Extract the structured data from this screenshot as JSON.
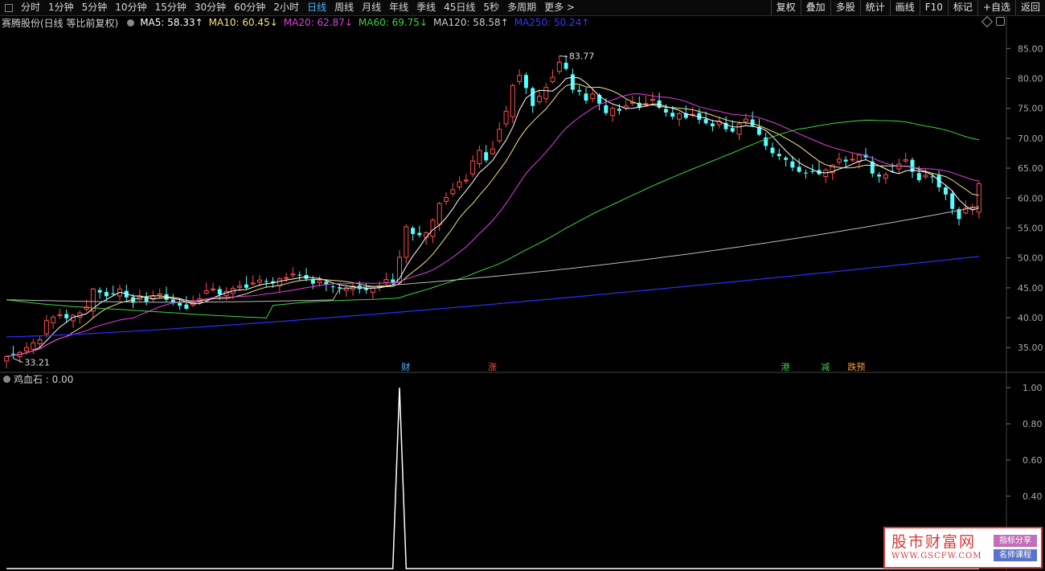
{
  "toolbar": {
    "periods": [
      {
        "label": "分时"
      },
      {
        "label": "1分钟"
      },
      {
        "label": "5分钟"
      },
      {
        "label": "10分钟"
      },
      {
        "label": "15分钟"
      },
      {
        "label": "30分钟"
      },
      {
        "label": "60分钟"
      },
      {
        "label": "2小时"
      },
      {
        "label": "日线",
        "active": true
      },
      {
        "label": "周线"
      },
      {
        "label": "月线"
      },
      {
        "label": "年线"
      },
      {
        "label": "季线"
      },
      {
        "label": "45日线"
      },
      {
        "label": "5秒"
      },
      {
        "label": "多周期"
      },
      {
        "label": "更多 >"
      }
    ],
    "right_buttons": [
      {
        "label": "复权"
      },
      {
        "label": "叠加"
      },
      {
        "label": "多股"
      },
      {
        "label": "统计"
      },
      {
        "label": "画线"
      },
      {
        "label": "F10"
      },
      {
        "label": "标记"
      },
      {
        "label": "+自选"
      },
      {
        "label": "返回"
      }
    ]
  },
  "legend": {
    "title": "赛腾股份(日线 等比前复权)",
    "items": [
      {
        "text": "MA5: 58.33↑",
        "color": "#ffffff"
      },
      {
        "text": "MA10: 60.45↓",
        "color": "#f5e28a"
      },
      {
        "text": "MA20: 62.87↓",
        "color": "#e040e0"
      },
      {
        "text": "MA60: 69.75↓",
        "color": "#3fd43f"
      },
      {
        "text": "MA120: 58.58↑",
        "color": "#cccccc"
      },
      {
        "text": "MA250: 50.24↑",
        "color": "#3636ff"
      }
    ]
  },
  "sub_legend": {
    "text": "鸡血石 : 0.00"
  },
  "watermark": {
    "title": "股市财富网",
    "url": "WWW.GSCFW.COM",
    "tag1": "指标分享",
    "tag2": "名师课程"
  },
  "colors": {
    "up": "#ff4b4b",
    "down": "#54ffff",
    "ma5": "#ffffff",
    "ma10": "#f5e28a",
    "ma20": "#e040e0",
    "ma60": "#3fd43f",
    "ma120": "#bbbbbb",
    "ma250": "#2e2eff"
  },
  "chart_data": [
    {
      "type": "candlestick",
      "title": "赛腾股份(日线 等比前复权)",
      "ylim": [
        31,
        88
      ],
      "y_ticks": [
        35,
        40,
        45,
        50,
        55,
        60,
        65,
        70,
        75,
        80,
        85
      ],
      "annotations": [
        {
          "text": "83.77",
          "value": 83.77
        },
        {
          "text": "33.21",
          "value": 33.21
        }
      ],
      "event_markers": [
        {
          "text": "财",
          "color": "#4fb6ff"
        },
        {
          "text": "涨",
          "color": "#ff4b4b"
        },
        {
          "text": "港",
          "color": "#3fd43f"
        },
        {
          "text": "减",
          "color": "#3fd43f"
        },
        {
          "text": "跌预",
          "color": "#ffa040"
        }
      ],
      "closes": [
        33.5,
        33.9,
        34.2,
        35.0,
        35.8,
        36.3,
        39.5,
        40.1,
        40.5,
        39.9,
        40.4,
        40.8,
        41.8,
        44.8,
        44.2,
        43.6,
        43.9,
        44.8,
        43.4,
        42.5,
        43.6,
        42.7,
        43.6,
        44.0,
        43.0,
        42.6,
        42.0,
        41.5,
        42.5,
        43.2,
        44.5,
        44.8,
        43.9,
        44.4,
        44.9,
        45.3,
        45.0,
        45.8,
        46.3,
        46.1,
        45.8,
        46.5,
        46.7,
        47.3,
        47.1,
        46.5,
        45.7,
        46.2,
        45.5,
        45.2,
        44.9,
        45.0,
        45.3,
        44.8,
        44.6,
        45.0,
        45.3,
        46.4,
        45.9,
        50.1,
        55.2,
        54.0,
        53.8,
        54.2,
        56.3,
        59.1,
        60.1,
        61.4,
        62.7,
        63.0,
        66.2,
        68.0,
        66.3,
        68.2,
        71.5,
        74.5,
        78.8,
        80.5,
        78.4,
        75.4,
        77.0,
        78.5,
        80.2,
        82.7,
        81.6,
        78.1,
        77.8,
        76.3,
        77.4,
        75.8,
        74.2,
        75.0,
        74.6,
        75.4,
        76.0,
        75.1,
        75.8,
        76.5,
        75.1,
        74.3,
        73.6,
        74.1,
        73.4,
        74.0,
        73.1,
        72.5,
        72.0,
        72.8,
        71.5,
        71.1,
        72.4,
        73.2,
        72.1,
        70.6,
        68.7,
        67.5,
        67.0,
        66.4,
        65.1,
        64.4,
        64.2,
        64.5,
        64.0,
        64.7,
        65.5,
        66.5,
        66.1,
        66.5,
        67.2,
        66.8,
        64.1,
        63.6,
        63.9,
        64.5,
        65.7,
        66.4,
        64.4,
        63.0,
        63.8,
        63.5,
        61.8,
        60.6,
        58.2,
        56.5,
        58.3,
        58.5,
        62.4
      ],
      "series": [
        {
          "name": "MA5",
          "last": 58.33
        },
        {
          "name": "MA10",
          "last": 60.45
        },
        {
          "name": "MA20",
          "last": 62.87
        },
        {
          "name": "MA60",
          "last": 69.75
        },
        {
          "name": "MA120",
          "last": 58.58
        },
        {
          "name": "MA250",
          "last": 50.24
        }
      ]
    },
    {
      "type": "line",
      "title": "鸡血石",
      "ylim": [
        0,
        1.0
      ],
      "y_ticks": [
        0.4,
        0.6,
        0.8,
        1.0
      ],
      "spike_at_index": 59,
      "value": 0.0
    }
  ]
}
